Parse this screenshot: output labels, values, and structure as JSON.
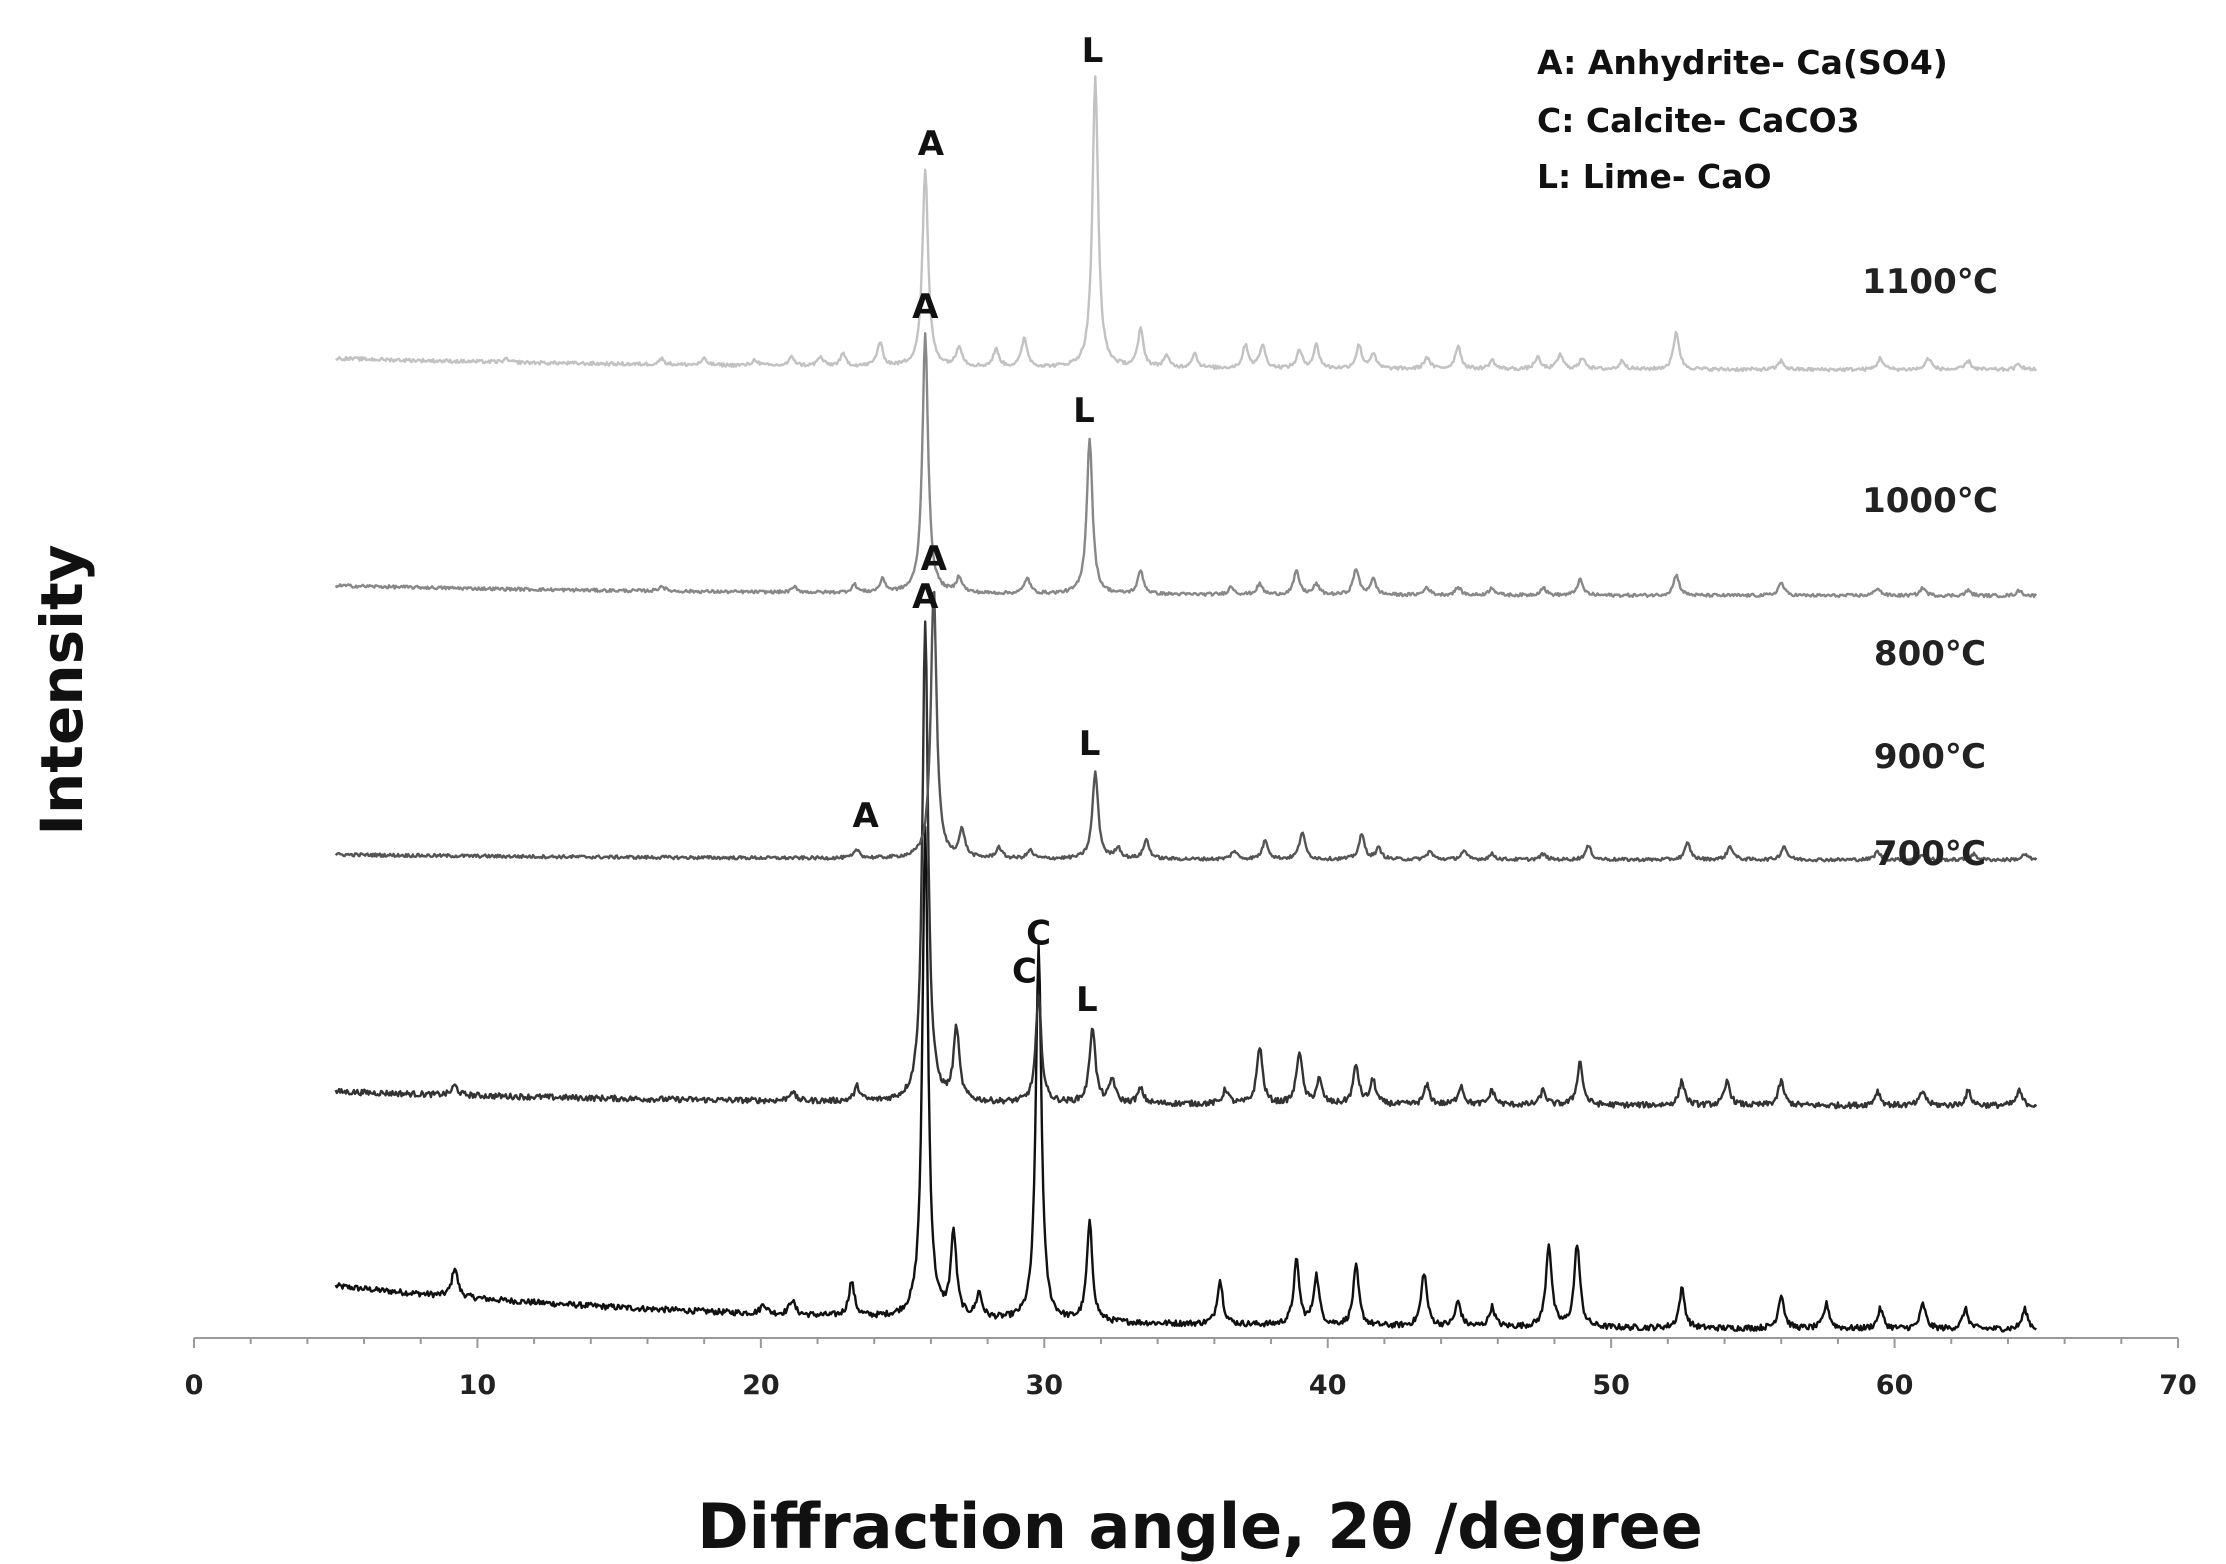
{
  "chart_data": {
    "type": "line",
    "xlabel": "Diffraction angle, 2θ /degree",
    "ylabel": "Intensity",
    "xlim": [
      0,
      70
    ],
    "x_ticks": [
      0,
      10,
      20,
      30,
      40,
      50,
      60,
      70
    ],
    "x_range_measured": [
      5,
      65
    ],
    "legend": [
      {
        "code": "A",
        "text": "A: Anhydrite- Ca(SO4)"
      },
      {
        "code": "C",
        "text": "C: Calcite- CaCO3"
      },
      {
        "code": "L",
        "text": "L: Lime- CaO"
      }
    ],
    "series": [
      {
        "name": "700℃",
        "color": "#111111",
        "baseline_start": 0.09,
        "baseline_end": 0.01,
        "peaks": [
          [
            9.2,
            0.06
          ],
          [
            20.1,
            0.02
          ],
          [
            21.1,
            0.03
          ],
          [
            23.2,
            0.07
          ],
          [
            25.8,
            1.0
          ],
          [
            26.8,
            0.17
          ],
          [
            27.7,
            0.05
          ],
          [
            29.8,
            0.76
          ],
          [
            31.6,
            0.2
          ],
          [
            36.2,
            0.09
          ],
          [
            38.9,
            0.13
          ],
          [
            39.6,
            0.1
          ],
          [
            41.0,
            0.12
          ],
          [
            43.4,
            0.11
          ],
          [
            44.6,
            0.05
          ],
          [
            45.8,
            0.04
          ],
          [
            47.8,
            0.17
          ],
          [
            48.8,
            0.17
          ],
          [
            52.5,
            0.08
          ],
          [
            56.0,
            0.07
          ],
          [
            57.6,
            0.05
          ],
          [
            59.5,
            0.04
          ],
          [
            61.0,
            0.05
          ],
          [
            62.5,
            0.04
          ],
          [
            64.6,
            0.04
          ]
        ],
        "peak_labels": [
          {
            "label": "A",
            "x": 23.7,
            "y": 1.0
          },
          {
            "label": "C",
            "x": 29.8,
            "y": 0.76
          }
        ]
      },
      {
        "name": "800℃",
        "color": "#333333",
        "baseline_start": 0.03,
        "baseline_end": 0.0,
        "peaks": [
          [
            9.2,
            0.02
          ],
          [
            21.1,
            0.02
          ],
          [
            23.4,
            0.03
          ],
          [
            25.8,
            1.0
          ],
          [
            26.9,
            0.15
          ],
          [
            29.8,
            0.22
          ],
          [
            31.7,
            0.16
          ],
          [
            32.4,
            0.05
          ],
          [
            33.4,
            0.03
          ],
          [
            36.4,
            0.03
          ],
          [
            37.6,
            0.12
          ],
          [
            39.0,
            0.11
          ],
          [
            39.7,
            0.05
          ],
          [
            41.0,
            0.08
          ],
          [
            41.6,
            0.05
          ],
          [
            43.5,
            0.04
          ],
          [
            44.7,
            0.04
          ],
          [
            45.8,
            0.03
          ],
          [
            47.6,
            0.03
          ],
          [
            48.9,
            0.09
          ],
          [
            52.5,
            0.05
          ],
          [
            54.1,
            0.05
          ],
          [
            56.0,
            0.05
          ],
          [
            59.4,
            0.03
          ],
          [
            61.0,
            0.03
          ],
          [
            62.6,
            0.03
          ],
          [
            64.4,
            0.03
          ]
        ],
        "peak_labels": [
          {
            "label": "A",
            "x": 25.8,
            "y": 1.0
          },
          {
            "label": "C",
            "x": 29.3,
            "y": 0.22
          },
          {
            "label": "L",
            "x": 31.5,
            "y": 0.16
          }
        ]
      },
      {
        "name": "900℃",
        "color": "#555555",
        "baseline_start": 0.02,
        "baseline_end": 0.0,
        "peaks": [
          [
            23.4,
            0.03
          ],
          [
            26.1,
            1.0
          ],
          [
            27.1,
            0.1
          ],
          [
            28.4,
            0.04
          ],
          [
            29.5,
            0.03
          ],
          [
            31.8,
            0.32
          ],
          [
            32.6,
            0.04
          ],
          [
            33.6,
            0.07
          ],
          [
            36.7,
            0.03
          ],
          [
            37.8,
            0.07
          ],
          [
            39.1,
            0.1
          ],
          [
            41.2,
            0.09
          ],
          [
            41.8,
            0.04
          ],
          [
            43.6,
            0.03
          ],
          [
            44.8,
            0.03
          ],
          [
            45.8,
            0.02
          ],
          [
            47.6,
            0.02
          ],
          [
            49.2,
            0.05
          ],
          [
            52.7,
            0.06
          ],
          [
            54.2,
            0.05
          ],
          [
            56.1,
            0.05
          ],
          [
            59.4,
            0.03
          ],
          [
            61.0,
            0.02
          ],
          [
            62.8,
            0.02
          ],
          [
            64.6,
            0.02
          ]
        ],
        "peak_labels": [
          {
            "label": "A",
            "x": 26.1,
            "y": 1.0
          },
          {
            "label": "L",
            "x": 31.6,
            "y": 0.32
          }
        ]
      },
      {
        "name": "1000℃",
        "color": "#888888",
        "baseline_start": 0.04,
        "baseline_end": 0.0,
        "peaks": [
          [
            16.5,
            0.02
          ],
          [
            21.2,
            0.02
          ],
          [
            23.3,
            0.03
          ],
          [
            24.3,
            0.05
          ],
          [
            25.8,
            1.0
          ],
          [
            27.0,
            0.06
          ],
          [
            29.4,
            0.06
          ],
          [
            31.6,
            0.6
          ],
          [
            33.4,
            0.09
          ],
          [
            36.6,
            0.03
          ],
          [
            37.6,
            0.04
          ],
          [
            38.9,
            0.09
          ],
          [
            39.6,
            0.04
          ],
          [
            41.0,
            0.1
          ],
          [
            41.6,
            0.06
          ],
          [
            43.5,
            0.03
          ],
          [
            44.6,
            0.03
          ],
          [
            45.8,
            0.03
          ],
          [
            47.6,
            0.03
          ],
          [
            48.9,
            0.06
          ],
          [
            52.3,
            0.08
          ],
          [
            56.0,
            0.05
          ],
          [
            59.4,
            0.03
          ],
          [
            61.0,
            0.03
          ],
          [
            62.6,
            0.02
          ],
          [
            64.4,
            0.02
          ]
        ],
        "peak_labels": [
          {
            "label": "A",
            "x": 25.8,
            "y": 1.0
          },
          {
            "label": "L",
            "x": 31.4,
            "y": 0.6
          }
        ]
      },
      {
        "name": "1100℃",
        "color": "#c2c2c2",
        "baseline_start": 0.04,
        "baseline_end": 0.0,
        "peaks": [
          [
            11.0,
            0.01
          ],
          [
            16.5,
            0.02
          ],
          [
            18.0,
            0.02
          ],
          [
            19.8,
            0.02
          ],
          [
            21.1,
            0.03
          ],
          [
            22.1,
            0.03
          ],
          [
            22.9,
            0.04
          ],
          [
            24.2,
            0.08
          ],
          [
            25.8,
            0.68
          ],
          [
            27.0,
            0.07
          ],
          [
            28.3,
            0.06
          ],
          [
            29.3,
            0.1
          ],
          [
            31.8,
            1.0
          ],
          [
            33.4,
            0.13
          ],
          [
            34.3,
            0.04
          ],
          [
            35.3,
            0.05
          ],
          [
            37.1,
            0.08
          ],
          [
            37.7,
            0.08
          ],
          [
            39.0,
            0.06
          ],
          [
            39.6,
            0.08
          ],
          [
            41.1,
            0.08
          ],
          [
            41.6,
            0.05
          ],
          [
            43.5,
            0.04
          ],
          [
            44.6,
            0.08
          ],
          [
            45.8,
            0.03
          ],
          [
            47.4,
            0.04
          ],
          [
            48.2,
            0.05
          ],
          [
            49.0,
            0.04
          ],
          [
            50.4,
            0.03
          ],
          [
            52.3,
            0.13
          ],
          [
            56.0,
            0.03
          ],
          [
            59.5,
            0.04
          ],
          [
            61.2,
            0.04
          ],
          [
            62.6,
            0.03
          ],
          [
            64.4,
            0.02
          ]
        ],
        "peak_labels": [
          {
            "label": "A",
            "x": 26.0,
            "y": 0.68
          },
          {
            "label": "L",
            "x": 31.7,
            "y": 1.0
          }
        ]
      }
    ]
  }
}
